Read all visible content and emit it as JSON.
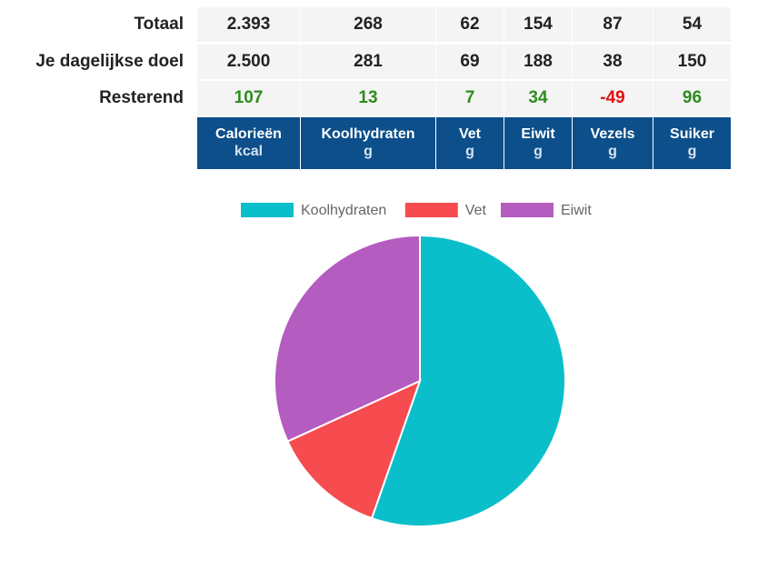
{
  "table": {
    "rows": [
      {
        "label": "Totaal",
        "values": [
          "2.393",
          "268",
          "62",
          "154",
          "87",
          "54"
        ]
      },
      {
        "label": "Je dagelijkse doel",
        "values": [
          "2.500",
          "281",
          "69",
          "188",
          "38",
          "150"
        ]
      },
      {
        "label": "Resterend",
        "values": [
          "107",
          "13",
          "7",
          "34",
          "-49",
          "96"
        ]
      }
    ],
    "headers": [
      {
        "name": "Calorieën",
        "unit": "kcal"
      },
      {
        "name": "Koolhydraten",
        "unit": "g"
      },
      {
        "name": "Vet",
        "unit": "g"
      },
      {
        "name": "Eiwit",
        "unit": "g"
      },
      {
        "name": "Vezels",
        "unit": "g"
      },
      {
        "name": "Suiker",
        "unit": "g"
      }
    ]
  },
  "colors": {
    "header_bg": "#0c4f8a",
    "positive": "#2e8b1e",
    "negative": "#e01010"
  },
  "chart_data": {
    "type": "pie",
    "categories": [
      "Koolhydraten",
      "Vet",
      "Eiwit"
    ],
    "values": [
      268,
      62,
      154
    ],
    "colors": [
      "#0bbfca",
      "#f64c4f",
      "#b45cbf"
    ],
    "legend": "top"
  }
}
